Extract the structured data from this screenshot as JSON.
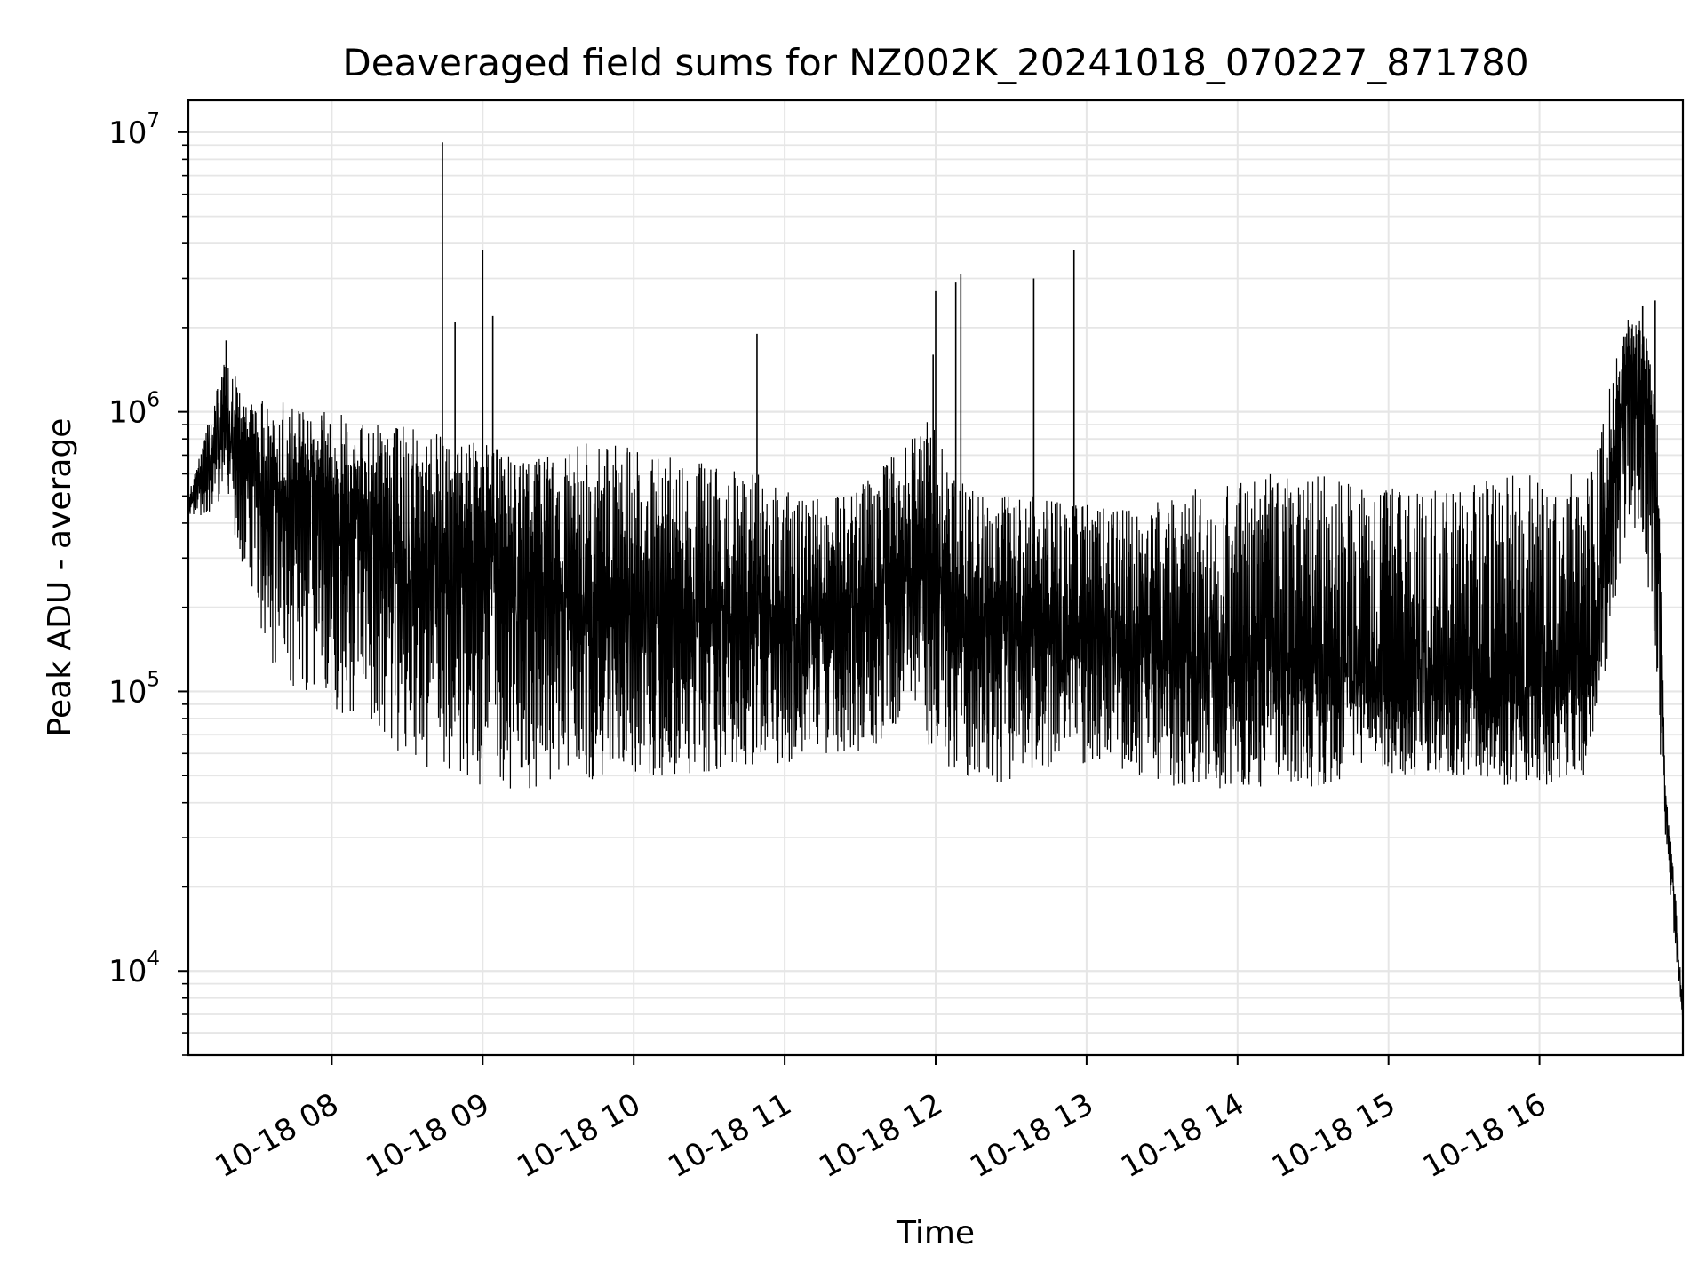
{
  "chart_data": {
    "type": "line",
    "title": "Deaveraged field sums for NZ002K_20241018_070227_871780",
    "xlabel": "Time",
    "ylabel": "Peak ADU - average",
    "y_scale": "log",
    "ylim": [
      5000,
      13000000
    ],
    "xlim": [
      "2024-10-18 07:03",
      "2024-10-18 16:57"
    ],
    "grid": true,
    "legend": "none",
    "line_color": "#000000",
    "grid_color": "#e6e6e6",
    "x_ticks": [
      {
        "value": "2024-10-18 08:00",
        "label": "10-18 08"
      },
      {
        "value": "2024-10-18 09:00",
        "label": "10-18 09"
      },
      {
        "value": "2024-10-18 10:00",
        "label": "10-18 10"
      },
      {
        "value": "2024-10-18 11:00",
        "label": "10-18 11"
      },
      {
        "value": "2024-10-18 12:00",
        "label": "10-18 12"
      },
      {
        "value": "2024-10-18 13:00",
        "label": "10-18 13"
      },
      {
        "value": "2024-10-18 14:00",
        "label": "10-18 14"
      },
      {
        "value": "2024-10-18 15:00",
        "label": "10-18 15"
      },
      {
        "value": "2024-10-18 16:00",
        "label": "10-18 16"
      }
    ],
    "y_ticks": [
      {
        "value": 10000,
        "base": "10",
        "exp": "4"
      },
      {
        "value": 100000,
        "base": "10",
        "exp": "5"
      },
      {
        "value": 1000000,
        "base": "10",
        "exp": "6"
      },
      {
        "value": 10000000,
        "base": "10",
        "exp": "7"
      }
    ],
    "series": [
      {
        "x": [
          "2024-10-18 07:03",
          "2024-10-18 07:10",
          "2024-10-18 07:18",
          "2024-10-18 07:25",
          "2024-10-18 07:33",
          "2024-10-18 07:40",
          "2024-10-18 07:48",
          "2024-10-18 07:55",
          "2024-10-18 08:05",
          "2024-10-18 08:15",
          "2024-10-18 08:25",
          "2024-10-18 08:35",
          "2024-10-18 08:45",
          "2024-10-18 08:53",
          "2024-10-18 09:00",
          "2024-10-18 09:10",
          "2024-10-18 09:25",
          "2024-10-18 09:40",
          "2024-10-18 09:55",
          "2024-10-18 10:10",
          "2024-10-18 10:30",
          "2024-10-18 10:50",
          "2024-10-18 11:05",
          "2024-10-18 11:20",
          "2024-10-18 11:35",
          "2024-10-18 11:50",
          "2024-10-18 11:58",
          "2024-10-18 12:08",
          "2024-10-18 12:20",
          "2024-10-18 12:40",
          "2024-10-18 12:55",
          "2024-10-18 13:10",
          "2024-10-18 13:30",
          "2024-10-18 13:50",
          "2024-10-18 14:10",
          "2024-10-18 14:30",
          "2024-10-18 14:50",
          "2024-10-18 15:10",
          "2024-10-18 15:30",
          "2024-10-18 15:50",
          "2024-10-18 16:05",
          "2024-10-18 16:20",
          "2024-10-18 16:35",
          "2024-10-18 16:42",
          "2024-10-18 16:47",
          "2024-10-18 16:50",
          "2024-10-18 16:53",
          "2024-10-18 16:57"
        ],
        "y": [
          450000,
          650000,
          900000,
          750000,
          500000,
          450000,
          550000,
          500000,
          400000,
          350000,
          300000,
          250000,
          350000,
          300000,
          350000,
          250000,
          250000,
          200000,
          200000,
          200000,
          180000,
          170000,
          150000,
          170000,
          200000,
          270000,
          300000,
          200000,
          180000,
          170000,
          160000,
          150000,
          140000,
          130000,
          130000,
          125000,
          120000,
          115000,
          110000,
          110000,
          110000,
          115000,
          1500000,
          1200000,
          400000,
          40000,
          20000,
          6500
        ],
        "lower": [
          420000,
          420000,
          500000,
          250000,
          150000,
          100000,
          100000,
          100000,
          80000,
          70000,
          60000,
          55000,
          50000,
          50000,
          45000,
          45000,
          45000,
          45000,
          50000,
          50000,
          50000,
          55000,
          55000,
          60000,
          60000,
          90000,
          60000,
          50000,
          45000,
          50000,
          55000,
          55000,
          45000,
          45000,
          45000,
          45000,
          50000,
          50000,
          50000,
          45000,
          45000,
          50000,
          400000,
          300000,
          80000,
          30000,
          15000,
          6500
        ],
        "upper": [
          500000,
          850000,
          1800000,
          1100000,
          1100000,
          1100000,
          1000000,
          1000000,
          1000000,
          900000,
          900000,
          900000,
          800000,
          800000,
          800000,
          700000,
          700000,
          800000,
          800000,
          700000,
          650000,
          600000,
          500000,
          500000,
          600000,
          800000,
          1000000,
          600000,
          500000,
          500000,
          500000,
          450000,
          500000,
          550000,
          600000,
          600000,
          550000,
          550000,
          550000,
          600000,
          600000,
          600000,
          2400000,
          2000000,
          1000000,
          45000,
          25000,
          8000
        ]
      }
    ],
    "spikes": [
      {
        "x": "2024-10-18 07:18",
        "y": 1800000
      },
      {
        "x": "2024-10-18 08:44",
        "y": 9200000
      },
      {
        "x": "2024-10-18 08:49",
        "y": 2100000
      },
      {
        "x": "2024-10-18 09:00",
        "y": 3800000
      },
      {
        "x": "2024-10-18 09:04",
        "y": 2200000
      },
      {
        "x": "2024-10-18 10:49",
        "y": 1900000
      },
      {
        "x": "2024-10-18 11:59",
        "y": 1600000
      },
      {
        "x": "2024-10-18 12:00",
        "y": 2700000
      },
      {
        "x": "2024-10-18 12:08",
        "y": 2900000
      },
      {
        "x": "2024-10-18 12:10",
        "y": 3100000
      },
      {
        "x": "2024-10-18 12:39",
        "y": 3000000
      },
      {
        "x": "2024-10-18 12:55",
        "y": 3800000
      },
      {
        "x": "2024-10-18 16:41",
        "y": 2400000
      },
      {
        "x": "2024-10-18 16:46",
        "y": 2500000
      }
    ]
  }
}
